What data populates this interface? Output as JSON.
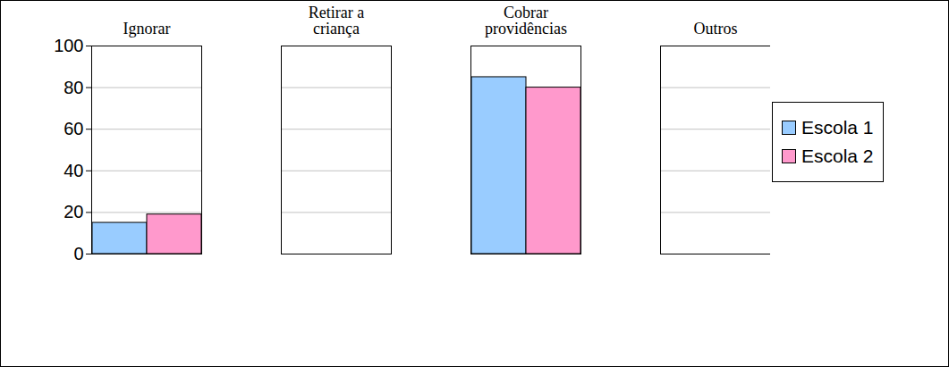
{
  "chart_data": {
    "type": "bar",
    "categories": [
      "Ignorar",
      "Retirar a criança",
      "Cobrar providências",
      "Outros"
    ],
    "series": [
      {
        "name": "Escola 1",
        "color": "#99ccff",
        "values": [
          15,
          0,
          85,
          0
        ]
      },
      {
        "name": "Escola 2",
        "color": "#ff99cc",
        "values": [
          19,
          0,
          80,
          0
        ]
      }
    ],
    "ylim": [
      0,
      100
    ],
    "yticks": [
      0,
      20,
      40,
      60,
      80,
      100
    ],
    "grid": true,
    "legend": "right"
  }
}
